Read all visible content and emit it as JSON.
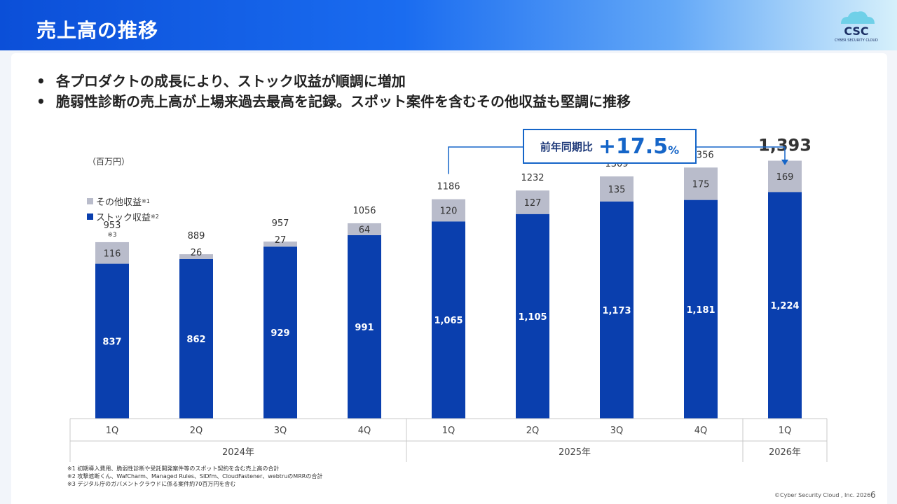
{
  "header": {
    "title": "売上高の推移",
    "logo_text": "CSC",
    "logo_subtext": "CYBER SECURITY CLOUD"
  },
  "bullets": [
    "各プロダクトの成長により、ストック収益が順調に増加",
    "脆弱性診断の売上高が上場来過去最高を記録。スポット案件を含むその他収益も堅調に推移"
  ],
  "unit_label": "（百万円）",
  "legend": [
    {
      "label": "その他収益",
      "note": "※1",
      "color": "#b9bccb"
    },
    {
      "label": "ストック収益",
      "note": "※2",
      "color": "#0a3fae"
    }
  ],
  "yoy": {
    "label": "前年同期比",
    "value": "+17.5",
    "unit": "%"
  },
  "chart_data": {
    "type": "bar",
    "stacked": true,
    "categories": [
      "1Q",
      "2Q",
      "3Q",
      "4Q",
      "1Q",
      "2Q",
      "3Q",
      "4Q",
      "1Q"
    ],
    "groups": [
      {
        "label": "2024年",
        "count": 4
      },
      {
        "label": "2025年",
        "count": 4
      },
      {
        "label": "2026年",
        "count": 1
      }
    ],
    "series": [
      {
        "name": "ストック収益",
        "values": [
          837,
          862,
          929,
          991,
          1065,
          1105,
          1173,
          1181,
          1224
        ],
        "labels": [
          "837",
          "862",
          "929",
          "991",
          "1,065",
          "1,105",
          "1,173",
          "1,181",
          "1,224"
        ]
      },
      {
        "name": "その他収益",
        "values": [
          116,
          26,
          27,
          64,
          120,
          127,
          135,
          175,
          169
        ],
        "labels": [
          "116",
          "26",
          "27",
          "64",
          "120",
          "127",
          "135",
          "175",
          "169"
        ]
      }
    ],
    "totals": [
      "953",
      "889",
      "957",
      "1056",
      "1186",
      "1232",
      "1309",
      "1,356",
      "1,393"
    ],
    "total_note": "※3",
    "ylim": [
      0,
      1550
    ]
  },
  "footnotes": [
    "※1 初期導入費用、脆弱性診断や受託開発案件等のスポット契約を含む売上高の合計",
    "※2 攻撃遮断くん、WafCharm、Managed Rules、SIDfm、CloudFastener、webtruのMRRの合計",
    "※3 デジタル庁のガバメントクラウドに係る案件約70百万円を含む"
  ],
  "footer": {
    "copyright": "©Cyber Security Cloud , Inc. 2026",
    "page": "6"
  }
}
